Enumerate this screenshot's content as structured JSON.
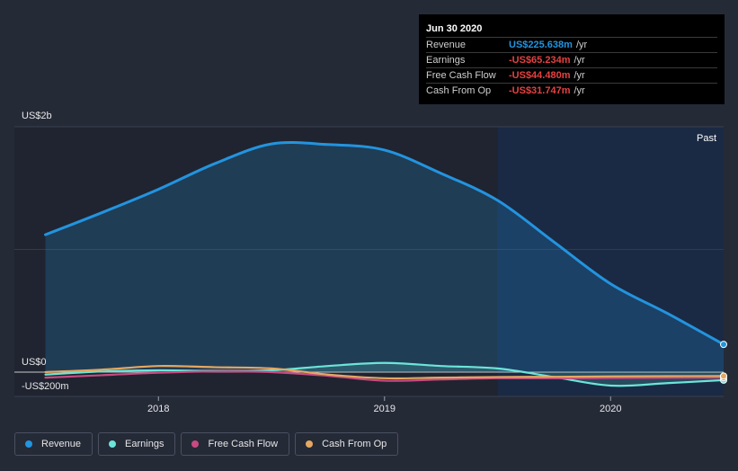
{
  "tooltip": {
    "date": "Jun 30 2020",
    "rows": [
      {
        "label": "Revenue",
        "value": "US$225.638m",
        "unit": "/yr",
        "color": "#2394df"
      },
      {
        "label": "Earnings",
        "value": "-US$65.234m",
        "unit": "/yr",
        "color": "#e64141"
      },
      {
        "label": "Free Cash Flow",
        "value": "-US$44.480m",
        "unit": "/yr",
        "color": "#e64141"
      },
      {
        "label": "Cash From Op",
        "value": "-US$31.747m",
        "unit": "/yr",
        "color": "#e64141"
      }
    ]
  },
  "past_label": "Past",
  "legend": [
    {
      "label": "Revenue",
      "color": "#2394df"
    },
    {
      "label": "Earnings",
      "color": "#6ce5d8"
    },
    {
      "label": "Free Cash Flow",
      "color": "#c94a82"
    },
    {
      "label": "Cash From Op",
      "color": "#e4a862"
    }
  ],
  "chart_data": {
    "type": "area",
    "title": "",
    "xlabel": "",
    "ylabel": "",
    "ylim": [
      -200,
      2000
    ],
    "xlim": [
      2017.49,
      2020.5
    ],
    "y_tick_labels": [
      {
        "value": 2000,
        "label": "US$2b"
      },
      {
        "value": 0,
        "label": "US$0"
      },
      {
        "value": -200,
        "label": "-US$200m"
      }
    ],
    "x_ticks": [
      {
        "value": 2018,
        "label": "2018"
      },
      {
        "value": 2019,
        "label": "2019"
      },
      {
        "value": 2020,
        "label": "2020"
      }
    ],
    "past_region_start": 2019.5,
    "series": [
      {
        "name": "Revenue",
        "color": "#2394df",
        "fill": true,
        "x": [
          2017.5,
          2017.75,
          2018.0,
          2018.25,
          2018.5,
          2018.75,
          2019.0,
          2019.25,
          2019.5,
          2019.75,
          2020.0,
          2020.25,
          2020.5
        ],
        "y": [
          1120,
          1300,
          1490,
          1700,
          1860,
          1855,
          1810,
          1620,
          1400,
          1060,
          720,
          480,
          226
        ]
      },
      {
        "name": "Earnings",
        "color": "#6ce5d8",
        "fill": true,
        "x": [
          2017.5,
          2017.75,
          2018.0,
          2018.25,
          2018.5,
          2018.75,
          2019.0,
          2019.25,
          2019.5,
          2019.75,
          2020.0,
          2020.25,
          2020.5
        ],
        "y": [
          -20,
          5,
          15,
          10,
          15,
          50,
          75,
          50,
          30,
          -40,
          -110,
          -90,
          -65
        ]
      },
      {
        "name": "Free Cash Flow",
        "color": "#c94a82",
        "fill": false,
        "x": [
          2017.5,
          2017.75,
          2018.0,
          2018.25,
          2018.5,
          2018.75,
          2019.0,
          2019.25,
          2019.5,
          2019.75,
          2020.0,
          2020.25,
          2020.5
        ],
        "y": [
          -45,
          -25,
          -5,
          5,
          0,
          -30,
          -70,
          -60,
          -50,
          -50,
          -48,
          -46,
          -44
        ]
      },
      {
        "name": "Cash From Op",
        "color": "#e4a862",
        "fill": false,
        "x": [
          2017.5,
          2017.75,
          2018.0,
          2018.25,
          2018.5,
          2018.75,
          2019.0,
          2019.25,
          2019.5,
          2019.75,
          2020.0,
          2020.25,
          2020.5
        ],
        "y": [
          0,
          20,
          50,
          40,
          30,
          -20,
          -50,
          -45,
          -40,
          -38,
          -35,
          -33,
          -32
        ]
      }
    ]
  }
}
